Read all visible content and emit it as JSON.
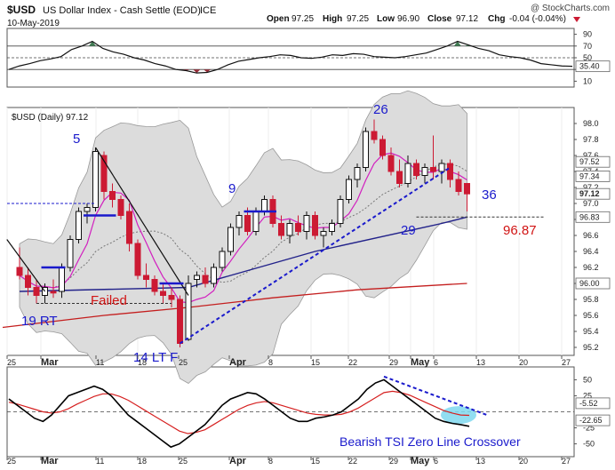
{
  "header": {
    "symbol": "$USD",
    "name": "US Dollar Index - Cash Settle (EOD)",
    "exchange": "ICE",
    "watermark": "@ StockCharts.com",
    "date": "10-May-2019",
    "quote": {
      "open_label": "Open",
      "open": "97.25",
      "high_label": "High",
      "high": "97.25",
      "low_label": "Low",
      "low": "96.90",
      "close_label": "Close",
      "close": "97.12",
      "chg_label": "Chg",
      "chg": "-0.04 (-0.04%)"
    }
  },
  "colors": {
    "up": "#111111",
    "down": "#cc1a33",
    "ma_fast": "#d21fbf",
    "ma_mid": "#22228a",
    "ma_long": "#c41e1e",
    "band_fill": "#dcdcdc",
    "annotation_blue": "#1a1acc",
    "annotation_red": "#d11414",
    "tsi_line": "#000000",
    "tsi_signal": "#d62020",
    "rsi_fill": "#3f7a52",
    "rsi_low_fill": "#9a2f3b",
    "cross_highlight": "#7fd8ee"
  },
  "chart_data": [
    {
      "type": "line",
      "name": "top-oscillator",
      "y_ticks": [
        "90",
        "70",
        "50",
        "30",
        "10"
      ],
      "ylim": [
        0,
        100
      ],
      "last_value": "35.40",
      "levels": [
        70,
        50,
        30
      ],
      "values": [
        30,
        36,
        40,
        45,
        48,
        52,
        64,
        70,
        78,
        66,
        60,
        56,
        50,
        46,
        40,
        36,
        30,
        28,
        24,
        25,
        30,
        38,
        44,
        47,
        50,
        52,
        55,
        54,
        50,
        49,
        51,
        55,
        54,
        57,
        56,
        52,
        51,
        50,
        52,
        55,
        58,
        64,
        70,
        78,
        72,
        66,
        62,
        55,
        52,
        50,
        46,
        40,
        38,
        36,
        35.4
      ]
    },
    {
      "type": "candlestick",
      "name": "price",
      "title": "$USD (Daily) 97.12",
      "y_ticks": [
        "98.0",
        "97.8",
        "97.6",
        "97.4",
        "97.2",
        "97.0",
        "96.8",
        "96.6",
        "96.4",
        "96.2",
        "96.0",
        "95.8",
        "95.6",
        "95.4",
        "95.2"
      ],
      "ylim": [
        95.1,
        98.2
      ],
      "x_tick_labels": [
        "25",
        "Mar",
        "11",
        "18",
        "25",
        "Apr",
        "8",
        "15",
        "22",
        "29",
        "May",
        "6",
        "13",
        "20",
        "27"
      ],
      "price_labels": [
        "97.52",
        "97.34",
        "97.12",
        "96.83",
        "96.00"
      ],
      "ohlc": [
        [
          96.2,
          96.45,
          96.05,
          96.1
        ],
        [
          96.1,
          96.2,
          95.85,
          95.95
        ],
        [
          95.95,
          96.05,
          95.75,
          95.85
        ],
        [
          95.85,
          96.0,
          95.75,
          95.95
        ],
        [
          95.9,
          96.05,
          95.82,
          95.88
        ],
        [
          95.9,
          96.25,
          95.82,
          96.2
        ],
        [
          96.2,
          96.6,
          96.15,
          96.55
        ],
        [
          96.55,
          96.95,
          96.5,
          96.9
        ],
        [
          96.9,
          97.0,
          96.75,
          96.95
        ],
        [
          96.95,
          97.7,
          96.9,
          97.65
        ],
        [
          97.6,
          97.65,
          97.05,
          97.15
        ],
        [
          97.15,
          97.25,
          96.95,
          97.05
        ],
        [
          97.05,
          97.1,
          96.8,
          96.85
        ],
        [
          96.9,
          97.0,
          96.4,
          96.5
        ],
        [
          96.5,
          96.55,
          96.05,
          96.1
        ],
        [
          96.1,
          96.25,
          95.95,
          96.05
        ],
        [
          96.05,
          96.1,
          95.85,
          95.9
        ],
        [
          95.9,
          96.0,
          95.75,
          95.85
        ],
        [
          95.85,
          95.95,
          95.7,
          95.8
        ],
        [
          95.8,
          95.85,
          95.2,
          95.25
        ],
        [
          95.3,
          96.1,
          95.28,
          96.0
        ],
        [
          96.05,
          96.15,
          95.95,
          96.1
        ],
        [
          96.1,
          96.2,
          95.95,
          96.0
        ],
        [
          96.0,
          96.25,
          95.95,
          96.2
        ],
        [
          96.2,
          96.45,
          96.15,
          96.4
        ],
        [
          96.4,
          96.75,
          96.35,
          96.7
        ],
        [
          96.7,
          96.9,
          96.6,
          96.85
        ],
        [
          96.85,
          96.95,
          96.6,
          96.65
        ],
        [
          96.65,
          96.95,
          96.6,
          96.9
        ],
        [
          96.9,
          97.1,
          96.85,
          97.05
        ],
        [
          97.05,
          97.1,
          96.7,
          96.75
        ],
        [
          96.75,
          96.85,
          96.55,
          96.6
        ],
        [
          96.6,
          96.8,
          96.5,
          96.75
        ],
        [
          96.75,
          96.85,
          96.6,
          96.65
        ],
        [
          96.65,
          96.9,
          96.55,
          96.85
        ],
        [
          96.85,
          96.9,
          96.55,
          96.6
        ],
        [
          96.6,
          96.7,
          96.45,
          96.65
        ],
        [
          96.65,
          96.8,
          96.6,
          96.75
        ],
        [
          96.75,
          97.1,
          96.7,
          97.05
        ],
        [
          97.05,
          97.35,
          97.0,
          97.3
        ],
        [
          97.3,
          97.5,
          97.2,
          97.45
        ],
        [
          97.45,
          97.95,
          97.4,
          97.9
        ],
        [
          97.9,
          98.05,
          97.75,
          97.8
        ],
        [
          97.8,
          97.85,
          97.55,
          97.6
        ],
        [
          97.6,
          97.7,
          97.35,
          97.4
        ],
        [
          97.4,
          97.55,
          97.2,
          97.25
        ],
        [
          97.25,
          97.6,
          97.2,
          97.5
        ],
        [
          97.5,
          97.55,
          97.3,
          97.35
        ],
        [
          97.35,
          97.5,
          97.25,
          97.45
        ],
        [
          97.45,
          97.85,
          97.3,
          97.4
        ],
        [
          97.4,
          97.55,
          97.25,
          97.5
        ],
        [
          97.5,
          97.55,
          97.2,
          97.3
        ],
        [
          97.3,
          97.4,
          97.1,
          97.15
        ],
        [
          97.25,
          97.25,
          96.9,
          97.12
        ]
      ],
      "annotations": [
        {
          "text": "5",
          "color": "blue"
        },
        {
          "text": "9",
          "color": "blue"
        },
        {
          "text": "26",
          "color": "blue"
        },
        {
          "text": "36",
          "color": "blue"
        },
        {
          "text": "29",
          "color": "blue"
        },
        {
          "text": "96.87",
          "color": "red"
        },
        {
          "text": "Failed",
          "color": "red"
        },
        {
          "text": "19 RT",
          "color": "blue"
        },
        {
          "text": "14 LT F",
          "color": "blue"
        }
      ]
    },
    {
      "type": "line",
      "name": "TSI",
      "y_ticks": [
        "50",
        "25",
        "-25",
        "-50"
      ],
      "ylim": [
        -70,
        70
      ],
      "price_labels": [
        "-5.52",
        "-22.65"
      ],
      "tsi": [
        20,
        10,
        0,
        -10,
        -15,
        -5,
        10,
        25,
        30,
        35,
        40,
        35,
        25,
        10,
        -5,
        -15,
        -25,
        -35,
        -45,
        -55,
        -50,
        -40,
        -30,
        -20,
        -5,
        10,
        20,
        25,
        30,
        28,
        20,
        10,
        0,
        -10,
        -15,
        -15,
        -10,
        -8,
        -5,
        0,
        10,
        20,
        35,
        45,
        50,
        40,
        30,
        20,
        10,
        0,
        -10,
        -15,
        -18,
        -20,
        -22.65
      ],
      "signal": [
        15,
        12,
        8,
        4,
        0,
        -2,
        0,
        5,
        12,
        18,
        24,
        28,
        28,
        24,
        18,
        10,
        2,
        -6,
        -14,
        -22,
        -30,
        -34,
        -32,
        -28,
        -20,
        -12,
        -4,
        4,
        10,
        14,
        16,
        14,
        10,
        6,
        2,
        -2,
        -4,
        -5,
        -5,
        -4,
        0,
        6,
        14,
        22,
        30,
        32,
        30,
        26,
        20,
        14,
        8,
        2,
        -2,
        -5,
        -5.52
      ],
      "annotation": "Bearish TSI Zero Line Crossover"
    }
  ]
}
